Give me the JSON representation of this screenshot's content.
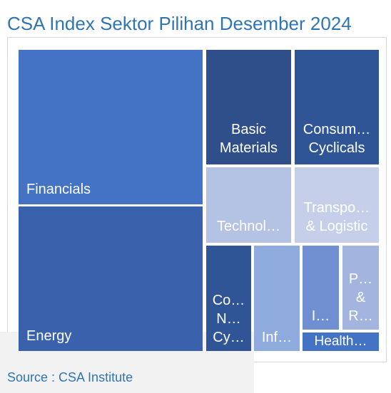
{
  "title": "CSA Index Sektor Pilihan Desember 2024",
  "source": "Source : CSA Institute",
  "chart_data": {
    "type": "treemap",
    "title": "CSA Index Sektor Pilihan Desember 2024",
    "items": [
      {
        "label": "Financials",
        "color": "#4472c4"
      },
      {
        "label": "Energy",
        "color": "#3a62ac"
      },
      {
        "label": "Basic\nMaterials",
        "color": "#2f4f8a"
      },
      {
        "label": "Consum…\nCyclicals",
        "color": "#2f5597"
      },
      {
        "label": "Technol…",
        "color": "#b4c2e3"
      },
      {
        "label": "Transpo…\n& Logistic",
        "color": "#c5cfe9"
      },
      {
        "label": "Co…\nN…\nCy…",
        "color": "#2f5597"
      },
      {
        "label": "Inf…",
        "color": "#8faadc"
      },
      {
        "label": "I…",
        "color": "#6f8fd0"
      },
      {
        "label": "P…\n&\nR…",
        "color": "#a3b4df"
      },
      {
        "label": "Health…",
        "color": "#4472c4"
      }
    ]
  }
}
